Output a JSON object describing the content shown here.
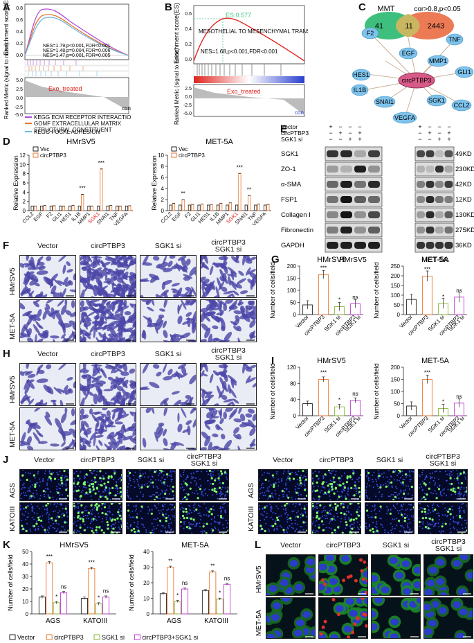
{
  "panels": {
    "A": "A",
    "B": "B",
    "C": "C",
    "D": "D",
    "E": "E",
    "F": "F",
    "G": "G",
    "H": "H",
    "I": "I",
    "J": "J",
    "K": "K",
    "L": "L"
  },
  "colors": {
    "orange": "#e8762c",
    "gray": "#8c8c8c",
    "green": "#8ab53a",
    "purple": "#c03ad6",
    "black": "#222222",
    "red": "#e0241f",
    "blue": "#2a3fcf",
    "teal": "#43c489"
  },
  "gsea_a": {
    "ylabel": "Enrichment score(ES)",
    "ylabel2": "Ranked Metric (signal to noise)",
    "nes": [
      "NES=1.79,p<0.001,FDR<0.001",
      "NES=1.48,p=0.004,FDR=0.006",
      "NES=1.47,p=0.001,FDR=0.005"
    ],
    "yticks": [
      "0.8",
      "0.6",
      "0.4",
      "0.2",
      "0.0"
    ],
    "rticks": [
      "5.0",
      "2.5",
      "0.0",
      "-2.5",
      "-5.0"
    ],
    "group": "Exo_treated",
    "ctrl": "con",
    "legend": [
      "KEGG ECM RECEPTOR INTERACTION",
      "GOMF EXTRACELLULAR MATRIX STRUCTURAL CONSTITUENT",
      "KEGG FOCAL ADHESION"
    ],
    "legend_colors": [
      "#b04ad8",
      "#e6732c",
      "#6fb8e6"
    ]
  },
  "gsea_b": {
    "ylabel": "Enrichment score(ES)",
    "ylabel2": "Ranked Metric (signal to noise)",
    "es": "ES:0.577",
    "title": "MESOTHELIAL TO MESENCHYMAL TRANSITION",
    "nes": "NES=1.68,p<0.001,FDR<0.001",
    "yticks": [
      "0.6",
      "0.4",
      "0.2",
      "0.0"
    ],
    "rticks": [
      "2.5",
      "0.0",
      "-2.5",
      "-5.0"
    ],
    "group": "Exo_treated",
    "ctrl": "con"
  },
  "venn": {
    "left": "MMT",
    "right": "cor>0.8,p<0.05",
    "a": "41",
    "ab": "11",
    "b": "2443",
    "hub": "circPTBP3",
    "nodes": [
      "F2",
      "TNF",
      "EGF",
      "MMP1",
      "GLI1",
      "HES1",
      "IL1B",
      "SNAI1",
      "SGK1",
      "CCL2",
      "VEGFA"
    ]
  },
  "chart_data": [
    {
      "type": "bar",
      "title": "HMrSV5",
      "ylabel": "Relative Expression",
      "ylim": [
        0,
        12
      ],
      "yticks": [
        "0",
        "2",
        "4",
        "6",
        "8",
        "10",
        "12"
      ],
      "categories": [
        "CCL2",
        "EGF",
        "F2",
        "GLI1",
        "HES1",
        "IL1B",
        "MMP1",
        "SGK1",
        "SNAI1",
        "TNF",
        "VEGFA"
      ],
      "series": [
        {
          "name": "Vec",
          "values": [
            1,
            1,
            1,
            1,
            1,
            1,
            1,
            1,
            1,
            1,
            1
          ]
        },
        {
          "name": "circPTBP3",
          "values": [
            1.0,
            1.1,
            1.05,
            1.0,
            1.1,
            3.5,
            1.0,
            9.0,
            1.1,
            1.0,
            1.05
          ]
        }
      ],
      "sig": [
        "",
        "",
        "",
        "",
        "",
        "***",
        "",
        "***",
        "",
        "",
        ""
      ],
      "highlight": "SGK1"
    },
    {
      "type": "bar",
      "title": "MET-5A",
      "ylabel": "Relative Expression",
      "ylim": [
        0,
        10
      ],
      "yticks": [
        "0",
        "2",
        "4",
        "6",
        "8",
        "10"
      ],
      "categories": [
        "CCL2",
        "EGF",
        "F2",
        "GLI1",
        "HES1",
        "IL1B",
        "MMP1",
        "SGK1",
        "SNAI1",
        "TNF",
        "VEGFA"
      ],
      "series": [
        {
          "name": "Vec",
          "values": [
            1,
            1,
            1,
            1,
            1,
            1,
            1,
            1,
            1,
            1,
            1
          ]
        },
        {
          "name": "circPTBP3",
          "values": [
            1.3,
            2.0,
            1.1,
            1.2,
            1.1,
            1.3,
            1.4,
            6.7,
            2.7,
            1.2,
            1.1
          ]
        }
      ],
      "sig": [
        "",
        "**",
        "",
        "",
        "",
        "",
        "",
        "***",
        "**",
        "",
        ""
      ],
      "highlight": "SGK1"
    },
    {
      "type": "bar",
      "title": "HMrSV5",
      "ylabel": "Number of cells/field",
      "ylim": [
        0,
        200
      ],
      "yticks": [
        "0",
        "50",
        "100",
        "150",
        "200"
      ],
      "categories": [
        "Vector",
        "circPTBP3",
        "SGK1 si",
        "circPTBP3 SGK1 si"
      ],
      "values": [
        40,
        165,
        33,
        45
      ],
      "sig": [
        "",
        "***",
        "*",
        "ns"
      ]
    },
    {
      "type": "bar",
      "title": "MET-5A",
      "ylabel": "Number of cells/field",
      "ylim": [
        0,
        250
      ],
      "yticks": [
        "0",
        "50",
        "100",
        "150",
        "200",
        "250"
      ],
      "categories": [
        "Vector",
        "circPTBP3",
        "SGK1 si",
        "circPTBP3 SGK1 si"
      ],
      "values": [
        78,
        198,
        58,
        90
      ],
      "sig": [
        "",
        "***",
        "*",
        "ns"
      ]
    },
    {
      "type": "bar",
      "title": "HMrSV5",
      "ylabel": "Number of cells/field",
      "ylim": [
        0,
        120
      ],
      "yticks": [
        "0",
        "40",
        "80",
        "120"
      ],
      "categories": [
        "Vector",
        "circPTBP3",
        "SGK1 si",
        "circPTBP3 SGK1 si"
      ],
      "values": [
        30,
        90,
        22,
        38
      ],
      "sig": [
        "",
        "***",
        "*",
        "ns"
      ]
    },
    {
      "type": "bar",
      "title": "MET-5A",
      "ylabel": "Number of cells/field",
      "ylim": [
        0,
        200
      ],
      "yticks": [
        "0",
        "50",
        "100",
        "150",
        "200"
      ],
      "categories": [
        "Vector",
        "circPTBP3",
        "SGK1 si",
        "circPTBP3 SGK1 si"
      ],
      "values": [
        40,
        150,
        30,
        52
      ],
      "sig": [
        "",
        "***",
        "*",
        "ns"
      ]
    },
    {
      "type": "bar",
      "title": "HMrSV5",
      "ylabel": "Number of cells/field",
      "ylim": [
        0,
        50
      ],
      "yticks": [
        "0",
        "10",
        "20",
        "30",
        "40",
        "50"
      ],
      "categories": [
        "AGS",
        "KATOIII"
      ],
      "series": [
        {
          "name": "Vector",
          "values": [
            13.5,
            12.5
          ]
        },
        {
          "name": "circPTBP3",
          "values": [
            41,
            36.5
          ]
        },
        {
          "name": "SGK1 si",
          "values": [
            9,
            8
          ]
        },
        {
          "name": "circPTBP3+SGK1 si",
          "values": [
            17,
            13.5
          ]
        }
      ],
      "sig": [
        [
          "",
          "***",
          "*",
          "ns"
        ],
        [
          "",
          "***",
          "*",
          "ns"
        ]
      ]
    },
    {
      "type": "bar",
      "title": "MET-5A",
      "ylabel": "Number of cells/field",
      "ylim": [
        0,
        40
      ],
      "yticks": [
        "0",
        "10",
        "20",
        "30",
        "40"
      ],
      "categories": [
        "AGS",
        "KATOIII"
      ],
      "series": [
        {
          "name": "Vector",
          "values": [
            13,
            15
          ]
        },
        {
          "name": "circPTBP3",
          "values": [
            30,
            27
          ]
        },
        {
          "name": "SGK1 si",
          "values": [
            8,
            9.5
          ]
        },
        {
          "name": "circPTBP3+SGK1 si",
          "values": [
            16,
            19
          ]
        }
      ],
      "sig": [
        [
          "",
          "**",
          "*",
          "ns"
        ],
        [
          "",
          "**",
          "*",
          "ns"
        ]
      ]
    }
  ],
  "western": {
    "cond_labels": [
      "Vector",
      "circPTBP3",
      "SGK1 si"
    ],
    "lane_marks": [
      [
        "+",
        "−",
        "−",
        "−"
      ],
      [
        "−",
        "+",
        "−",
        "+"
      ],
      [
        "−",
        "−",
        "+",
        "+"
      ]
    ],
    "proteins": [
      "SGK1",
      "ZO-1",
      "α-SMA",
      "FSP1",
      "Collagen I",
      "Fibronectin",
      "GAPDH"
    ],
    "sizes": [
      "49KD",
      "230KD",
      "42KD",
      "12KD",
      "130KD",
      "275KD",
      "36KD"
    ],
    "cells": [
      "HMrSV5",
      "MET-5A"
    ]
  },
  "micro": {
    "cols": [
      "Vector",
      "circPTBP3",
      "SGK1 si",
      "circPTBP3 SGK1 si"
    ],
    "rows": [
      "HMrSV5",
      "MET-5A"
    ],
    "j_rows": [
      "AGS",
      "KATOIII"
    ],
    "l_rows": [
      "HMrSV5",
      "MET-5A"
    ]
  },
  "legend_k": [
    "Vector",
    "circPTBP3",
    "SGK1 si",
    "circPTBP3+SGK1 si"
  ]
}
